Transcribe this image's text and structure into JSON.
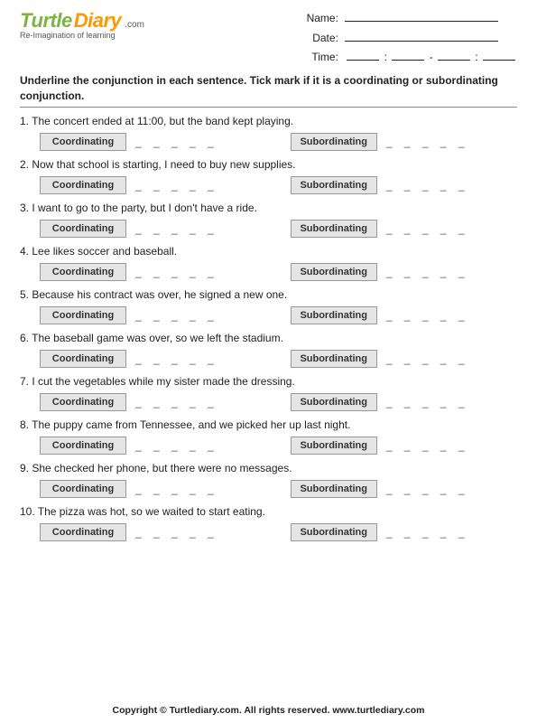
{
  "logo": {
    "word1": "Turtle",
    "word2": "Diary",
    "suffix": ".com",
    "tagline": "Re-Imagination of learning"
  },
  "meta": {
    "name_label": "Name:",
    "date_label": "Date:",
    "time_label": "Time:",
    "colon": ":",
    "dash": "-"
  },
  "instructions": "Underline the conjunction in each sentence. Tick mark if it is a coordinating or subordinating conjunction.",
  "option_labels": {
    "coordinating": "Coordinating",
    "subordinating": "Subordinating"
  },
  "dashes": "_ _ _ _ _",
  "questions": [
    {
      "n": "1.",
      "text": "The concert ended at 11:00, but the band kept playing."
    },
    {
      "n": "2.",
      "text": "Now that school is starting, I need to buy new supplies."
    },
    {
      "n": "3.",
      "text": "I want to go to the party, but I don't have a ride."
    },
    {
      "n": "4.",
      "text": "Lee likes soccer and baseball."
    },
    {
      "n": "5.",
      "text": "Because his contract was over, he signed a new one."
    },
    {
      "n": "6.",
      "text": "The baseball game was over, so we left the stadium."
    },
    {
      "n": "7.",
      "text": "I cut the vegetables while my sister made the dressing."
    },
    {
      "n": "8.",
      "text": "The puppy came from Tennessee, and we picked her up last night."
    },
    {
      "n": "9.",
      "text": "She checked her phone, but there were no messages."
    },
    {
      "n": "10.",
      "text": "The pizza was hot, so we waited to start eating."
    }
  ],
  "footer": "Copyright © Turtlediary.com. All rights reserved. www.turtlediary.com"
}
